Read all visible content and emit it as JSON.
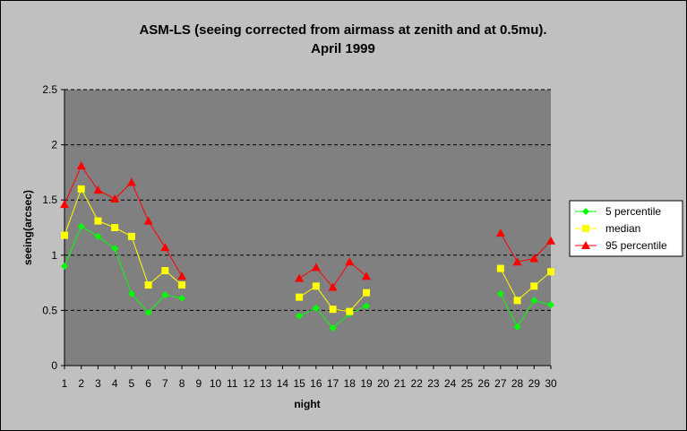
{
  "chart_data": {
    "type": "line",
    "title": "ASM-LS (seeing corrected from airmass at zenith and at 0.5mu).",
    "subtitle": "April 1999",
    "xlabel": "night",
    "ylabel": "seeing(arcsec)",
    "ylim": [
      0,
      2.5
    ],
    "yticks": [
      "0",
      "0.5",
      "1",
      "1.5",
      "2",
      "2.5"
    ],
    "x": [
      1,
      2,
      3,
      4,
      5,
      6,
      7,
      8,
      9,
      10,
      11,
      12,
      13,
      14,
      15,
      16,
      17,
      18,
      19,
      20,
      21,
      22,
      23,
      24,
      25,
      26,
      27,
      28,
      29,
      30
    ],
    "grid": "dashed horizontal major gridlines",
    "legend_position": "right",
    "plot_background": "#808080",
    "chart_background": "#c0c0c0",
    "series": [
      {
        "name": "5 percentile",
        "color": "#00ff00",
        "marker": "diamond",
        "values": [
          0.9,
          1.26,
          1.17,
          1.06,
          0.65,
          0.48,
          0.64,
          0.61,
          null,
          null,
          null,
          null,
          null,
          null,
          0.45,
          0.52,
          0.34,
          0.47,
          0.54,
          null,
          null,
          null,
          null,
          null,
          null,
          null,
          0.65,
          0.35,
          0.59,
          0.55
        ]
      },
      {
        "name": "median",
        "color": "#ffff00",
        "marker": "square",
        "values": [
          1.18,
          1.6,
          1.31,
          1.25,
          1.17,
          0.73,
          0.86,
          0.73,
          null,
          null,
          null,
          null,
          null,
          null,
          0.62,
          0.72,
          0.51,
          0.49,
          0.66,
          null,
          null,
          null,
          null,
          null,
          null,
          null,
          0.88,
          0.59,
          0.72,
          0.85
        ]
      },
      {
        "name": "95 percentile",
        "color": "#ff0000",
        "marker": "triangle",
        "values": [
          1.46,
          1.81,
          1.59,
          1.51,
          1.66,
          1.31,
          1.07,
          0.81,
          null,
          null,
          null,
          null,
          null,
          null,
          0.79,
          0.89,
          0.71,
          0.94,
          0.81,
          null,
          null,
          null,
          null,
          null,
          null,
          null,
          1.2,
          0.94,
          0.97,
          1.13
        ]
      }
    ]
  }
}
